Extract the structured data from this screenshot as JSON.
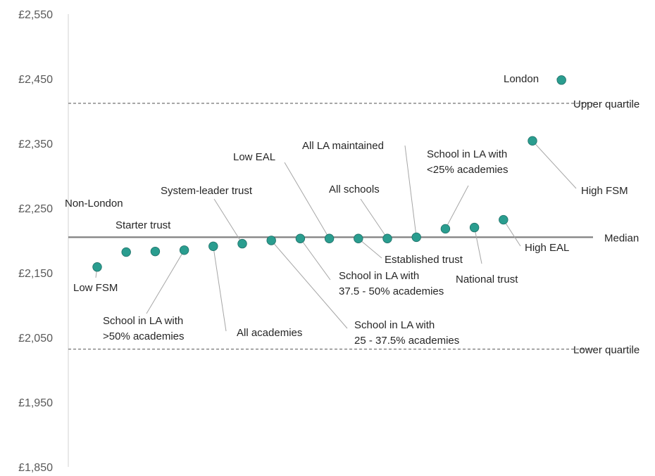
{
  "chart_data": {
    "type": "scatter",
    "title": "",
    "xlabel": "",
    "ylabel": "",
    "ylim": [
      1850,
      2550
    ],
    "y_ticks": [
      1850,
      1950,
      2050,
      2150,
      2250,
      2350,
      2450,
      2550
    ],
    "y_tick_labels": [
      "£1,850",
      "£1,950",
      "£2,050",
      "£2,150",
      "£2,250",
      "£2,350",
      "£2,450",
      "£2,550"
    ],
    "grid": false,
    "marker_color": "#2a9d8f",
    "marker_edge_color": "#1f6f67",
    "points": [
      {
        "label": "Low FSM",
        "value": 2159
      },
      {
        "label": "Non-London",
        "value": 2182
      },
      {
        "label": "Starter trust",
        "value": 2183
      },
      {
        "label": "School in LA with >50% academies",
        "value": 2185
      },
      {
        "label": "All academies",
        "value": 2191
      },
      {
        "label": "System-leader trust",
        "value": 2195
      },
      {
        "label": "School in LA with 25 - 37.5% academies",
        "value": 2200
      },
      {
        "label": "School in LA with 37.5 - 50% academies",
        "value": 2203
      },
      {
        "label": "Low EAL",
        "value": 2203
      },
      {
        "label": "Established trust",
        "value": 2203
      },
      {
        "label": "All schools",
        "value": 2203
      },
      {
        "label": "All LA maintained",
        "value": 2205
      },
      {
        "label": "School in LA with <25% academies",
        "value": 2218
      },
      {
        "label": "National trust",
        "value": 2220
      },
      {
        "label": "High EAL",
        "value": 2232
      },
      {
        "label": "High FSM",
        "value": 2354
      },
      {
        "label": "London",
        "value": 2448
      }
    ],
    "reference_lines": [
      {
        "label": "Upper quartile",
        "value": 2412,
        "style": "dashed"
      },
      {
        "label": "Median",
        "value": 2205,
        "style": "solid"
      },
      {
        "label": "Lower quartile",
        "value": 2032,
        "style": "dashed"
      }
    ]
  }
}
